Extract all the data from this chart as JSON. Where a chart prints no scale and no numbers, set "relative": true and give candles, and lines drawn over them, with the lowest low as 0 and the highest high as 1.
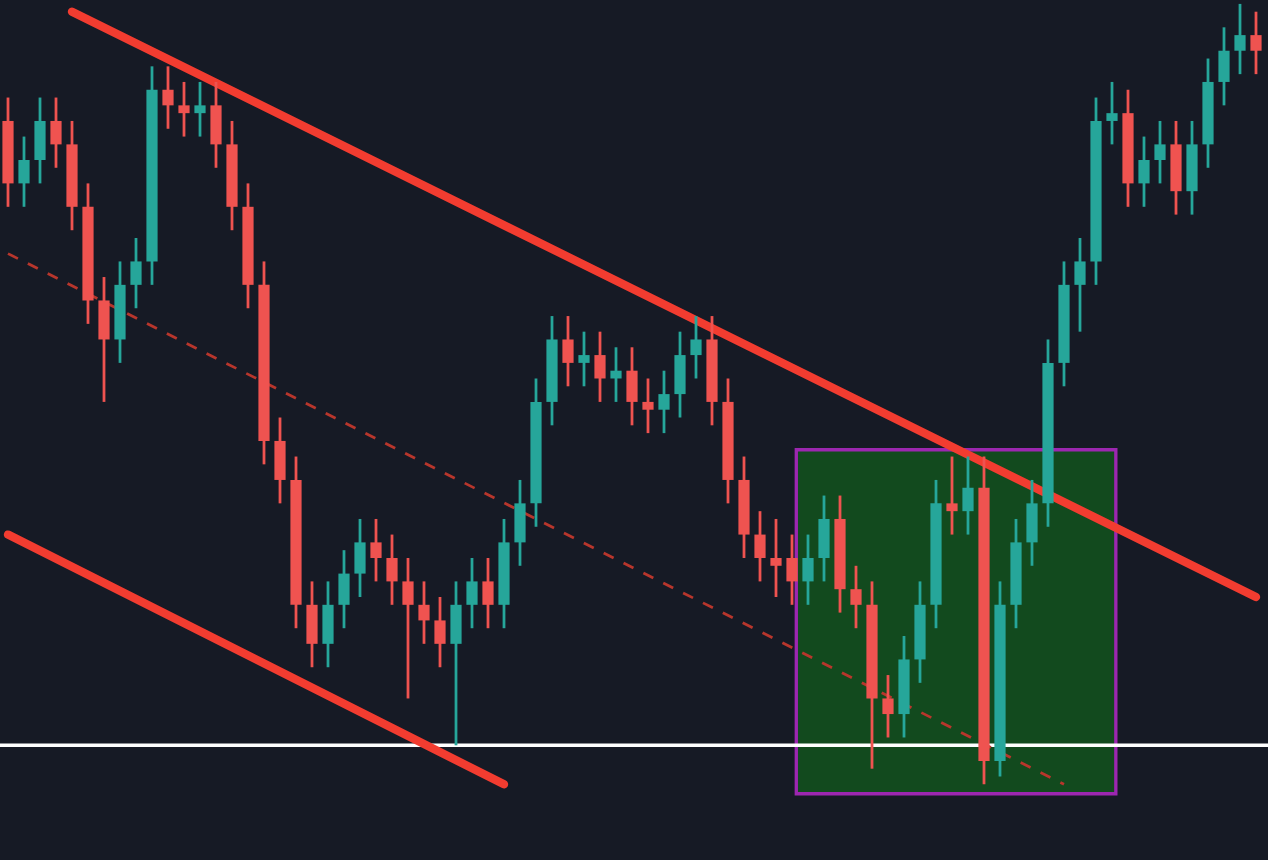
{
  "chart_data": {
    "type": "candlestick",
    "relative": true,
    "categories": [
      null,
      null,
      null,
      null,
      null,
      null,
      null,
      null,
      null,
      null,
      null,
      null,
      null,
      null,
      null,
      null,
      null,
      null,
      null,
      null,
      null,
      null,
      null,
      null,
      null,
      null,
      null,
      null,
      null,
      null,
      null,
      null,
      null,
      null,
      null,
      null,
      null,
      null,
      null,
      null,
      null,
      null,
      null,
      null,
      null,
      null,
      null,
      null,
      null,
      null,
      null,
      null,
      null,
      null,
      null,
      null,
      null,
      null,
      null,
      null,
      null,
      null,
      null,
      null,
      null,
      null,
      null,
      null,
      null,
      null,
      null,
      null,
      null,
      null,
      null,
      null,
      null,
      null,
      null
    ],
    "ohlc": [
      [
        0.85,
        0.88,
        0.74,
        0.77
      ],
      [
        0.77,
        0.83,
        0.74,
        0.8
      ],
      [
        0.8,
        0.88,
        0.77,
        0.85
      ],
      [
        0.85,
        0.88,
        0.79,
        0.82
      ],
      [
        0.82,
        0.85,
        0.71,
        0.74
      ],
      [
        0.74,
        0.77,
        0.59,
        0.62
      ],
      [
        0.62,
        0.65,
        0.49,
        0.57
      ],
      [
        0.57,
        0.67,
        0.54,
        0.64
      ],
      [
        0.64,
        0.7,
        0.61,
        0.67
      ],
      [
        0.67,
        0.92,
        0.64,
        0.89
      ],
      [
        0.89,
        0.92,
        0.84,
        0.87
      ],
      [
        0.87,
        0.9,
        0.83,
        0.86
      ],
      [
        0.86,
        0.9,
        0.83,
        0.87
      ],
      [
        0.87,
        0.9,
        0.79,
        0.82
      ],
      [
        0.82,
        0.85,
        0.71,
        0.74
      ],
      [
        0.74,
        0.77,
        0.61,
        0.64
      ],
      [
        0.64,
        0.67,
        0.41,
        0.44
      ],
      [
        0.44,
        0.47,
        0.36,
        0.39
      ],
      [
        0.39,
        0.42,
        0.2,
        0.23
      ],
      [
        0.23,
        0.26,
        0.15,
        0.18
      ],
      [
        0.18,
        0.26,
        0.15,
        0.23
      ],
      [
        0.23,
        0.3,
        0.2,
        0.27
      ],
      [
        0.27,
        0.34,
        0.24,
        0.31
      ],
      [
        0.31,
        0.34,
        0.26,
        0.29
      ],
      [
        0.29,
        0.32,
        0.23,
        0.26
      ],
      [
        0.26,
        0.29,
        0.11,
        0.23
      ],
      [
        0.23,
        0.26,
        0.18,
        0.21
      ],
      [
        0.21,
        0.24,
        0.15,
        0.18
      ],
      [
        0.18,
        0.26,
        0.05,
        0.23
      ],
      [
        0.23,
        0.29,
        0.2,
        0.26
      ],
      [
        0.26,
        0.29,
        0.2,
        0.23
      ],
      [
        0.23,
        0.34,
        0.2,
        0.31
      ],
      [
        0.31,
        0.39,
        0.28,
        0.36
      ],
      [
        0.36,
        0.52,
        0.33,
        0.49
      ],
      [
        0.49,
        0.6,
        0.46,
        0.57
      ],
      [
        0.57,
        0.6,
        0.51,
        0.54
      ],
      [
        0.54,
        0.58,
        0.51,
        0.55
      ],
      [
        0.55,
        0.58,
        0.49,
        0.52
      ],
      [
        0.52,
        0.56,
        0.49,
        0.53
      ],
      [
        0.53,
        0.56,
        0.46,
        0.49
      ],
      [
        0.49,
        0.52,
        0.45,
        0.48
      ],
      [
        0.48,
        0.53,
        0.45,
        0.5
      ],
      [
        0.5,
        0.58,
        0.47,
        0.55
      ],
      [
        0.55,
        0.6,
        0.52,
        0.57
      ],
      [
        0.57,
        0.6,
        0.46,
        0.49
      ],
      [
        0.49,
        0.52,
        0.36,
        0.39
      ],
      [
        0.39,
        0.42,
        0.29,
        0.32
      ],
      [
        0.32,
        0.35,
        0.26,
        0.29
      ],
      [
        0.29,
        0.34,
        0.24,
        0.28
      ],
      [
        0.29,
        0.32,
        0.23,
        0.26
      ],
      [
        0.26,
        0.32,
        0.23,
        0.29
      ],
      [
        0.29,
        0.37,
        0.26,
        0.34
      ],
      [
        0.34,
        0.37,
        0.22,
        0.25
      ],
      [
        0.25,
        0.28,
        0.2,
        0.23
      ],
      [
        0.23,
        0.26,
        0.02,
        0.11
      ],
      [
        0.11,
        0.14,
        0.06,
        0.09
      ],
      [
        0.09,
        0.19,
        0.06,
        0.16
      ],
      [
        0.16,
        0.26,
        0.13,
        0.23
      ],
      [
        0.23,
        0.39,
        0.2,
        0.36
      ],
      [
        0.36,
        0.42,
        0.32,
        0.35
      ],
      [
        0.35,
        0.42,
        0.32,
        0.38
      ],
      [
        0.38,
        0.42,
        0.0,
        0.03
      ],
      [
        0.03,
        0.26,
        0.01,
        0.23
      ],
      [
        0.23,
        0.34,
        0.2,
        0.31
      ],
      [
        0.31,
        0.39,
        0.28,
        0.36
      ],
      [
        0.36,
        0.57,
        0.33,
        0.54
      ],
      [
        0.54,
        0.67,
        0.51,
        0.64
      ],
      [
        0.64,
        0.7,
        0.58,
        0.67
      ],
      [
        0.67,
        0.88,
        0.64,
        0.85
      ],
      [
        0.85,
        0.9,
        0.82,
        0.86
      ],
      [
        0.86,
        0.89,
        0.74,
        0.77
      ],
      [
        0.77,
        0.83,
        0.74,
        0.8
      ],
      [
        0.8,
        0.85,
        0.77,
        0.82
      ],
      [
        0.82,
        0.85,
        0.73,
        0.76
      ],
      [
        0.76,
        0.85,
        0.73,
        0.82
      ],
      [
        0.82,
        0.93,
        0.79,
        0.9
      ],
      [
        0.9,
        0.97,
        0.87,
        0.94
      ],
      [
        0.94,
        1.0,
        0.91,
        0.96
      ],
      [
        0.96,
        0.99,
        0.91,
        0.94
      ]
    ],
    "colors": [
      "#ef5350",
      "#26a69a",
      "#26a69a",
      "#ef5350",
      "#ef5350",
      "#ef5350",
      "#ef5350",
      "#26a69a",
      "#26a69a",
      "#26a69a",
      "#ef5350",
      "#ef5350",
      "#26a69a",
      "#ef5350",
      "#ef5350",
      "#ef5350",
      "#ef5350",
      "#ef5350",
      "#ef5350",
      "#ef5350",
      "#26a69a",
      "#26a69a",
      "#26a69a",
      "#ef5350",
      "#ef5350",
      "#ef5350",
      "#ef5350",
      "#ef5350",
      "#26a69a",
      "#26a69a",
      "#ef5350",
      "#26a69a",
      "#26a69a",
      "#26a69a",
      "#26a69a",
      "#ef5350",
      "#26a69a",
      "#ef5350",
      "#26a69a",
      "#ef5350",
      "#ef5350",
      "#26a69a",
      "#26a69a",
      "#26a69a",
      "#ef5350",
      "#ef5350",
      "#ef5350",
      "#ef5350",
      "#ef5350",
      "#ef5350",
      "#26a69a",
      "#26a69a",
      "#ef5350",
      "#ef5350",
      "#ef5350",
      "#ef5350",
      "#26a69a",
      "#26a69a",
      "#26a69a",
      "#ef5350",
      "#26a69a",
      "#ef5350",
      "#26a69a",
      "#26a69a",
      "#26a69a",
      "#26a69a",
      "#26a69a",
      "#26a69a",
      "#26a69a",
      "#26a69a",
      "#ef5350",
      "#26a69a",
      "#26a69a",
      "#ef5350",
      "#26a69a",
      "#26a69a",
      "#26a69a",
      "#26a69a",
      "#ef5350"
    ],
    "series": [
      {
        "type": "line",
        "color": "#f23c30",
        "line_style": "solid",
        "values": [
          null,
          null,
          null,
          null,
          0.99,
          null,
          null,
          null,
          null,
          null,
          null,
          null,
          null,
          null,
          null,
          null,
          null,
          null,
          null,
          null,
          null,
          null,
          null,
          null,
          null,
          null,
          null,
          null,
          null,
          null,
          null,
          null,
          null,
          null,
          null,
          null,
          null,
          null,
          null,
          null,
          null,
          null,
          null,
          null,
          null,
          null,
          null,
          null,
          null,
          null,
          null,
          null,
          null,
          null,
          null,
          null,
          null,
          null,
          null,
          null,
          null,
          null,
          null,
          null,
          null,
          null,
          null,
          null,
          null,
          null,
          null,
          null,
          null,
          null,
          null,
          null,
          null,
          null,
          0.24
        ]
      },
      {
        "type": "line",
        "color": "#f23c30",
        "line_style": "solid",
        "values": [
          0.32,
          null,
          null,
          null,
          null,
          null,
          null,
          null,
          null,
          null,
          null,
          null,
          null,
          null,
          null,
          null,
          null,
          null,
          null,
          null,
          null,
          null,
          null,
          null,
          null,
          null,
          null,
          null,
          null,
          null,
          null,
          0.0,
          null,
          null,
          null,
          null,
          null,
          null,
          null,
          null,
          null,
          null,
          null,
          null,
          null,
          null,
          null,
          null,
          null,
          null,
          null,
          null,
          null,
          null,
          null,
          null,
          null,
          null,
          null,
          null,
          null,
          null,
          null,
          null,
          null,
          null,
          null,
          null,
          null,
          null,
          null,
          null,
          null,
          null,
          null,
          null,
          null,
          null,
          null
        ]
      },
      {
        "type": "line",
        "color": "#b8362c",
        "line_style": "dashed",
        "values": [
          0.68,
          null,
          null,
          null,
          null,
          null,
          null,
          null,
          null,
          null,
          null,
          null,
          null,
          null,
          null,
          null,
          null,
          null,
          null,
          null,
          null,
          null,
          null,
          null,
          null,
          null,
          null,
          null,
          null,
          null,
          null,
          null,
          null,
          null,
          null,
          null,
          null,
          null,
          null,
          null,
          null,
          null,
          null,
          null,
          null,
          null,
          null,
          null,
          null,
          null,
          null,
          null,
          null,
          null,
          null,
          null,
          null,
          null,
          null,
          null,
          null,
          null,
          null,
          null,
          null,
          null,
          0.0,
          null,
          null,
          null,
          null,
          null,
          null,
          null,
          null,
          null,
          null,
          null,
          null
        ]
      }
    ],
    "ref_lines": [
      {
        "axis": "y",
        "value": 0.05,
        "color": "#ffffff"
      }
    ]
  }
}
